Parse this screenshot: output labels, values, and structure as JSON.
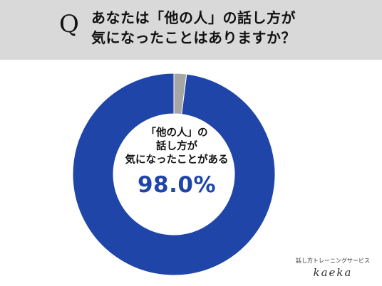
{
  "header": {
    "q_mark": "Q",
    "question_lines": [
      "あなたは「他の人」の話し方が",
      "気になったことはありますか？"
    ]
  },
  "chart_data": {
    "type": "pie",
    "categories": [
      "気になったことがある",
      ""
    ],
    "values": [
      98.0,
      2.0
    ],
    "colors": [
      "#1f45a8",
      "#a6a6a6"
    ],
    "donut": true,
    "start_angle_deg": 0,
    "direction": "counterclockwise",
    "center_label_lines": [
      "「他の人」の",
      "話し方が",
      "気になったことがある"
    ],
    "center_value": "98.0%"
  },
  "brand": {
    "subtitle": "話し方トレーニングサービス",
    "logo": "kaeka"
  }
}
